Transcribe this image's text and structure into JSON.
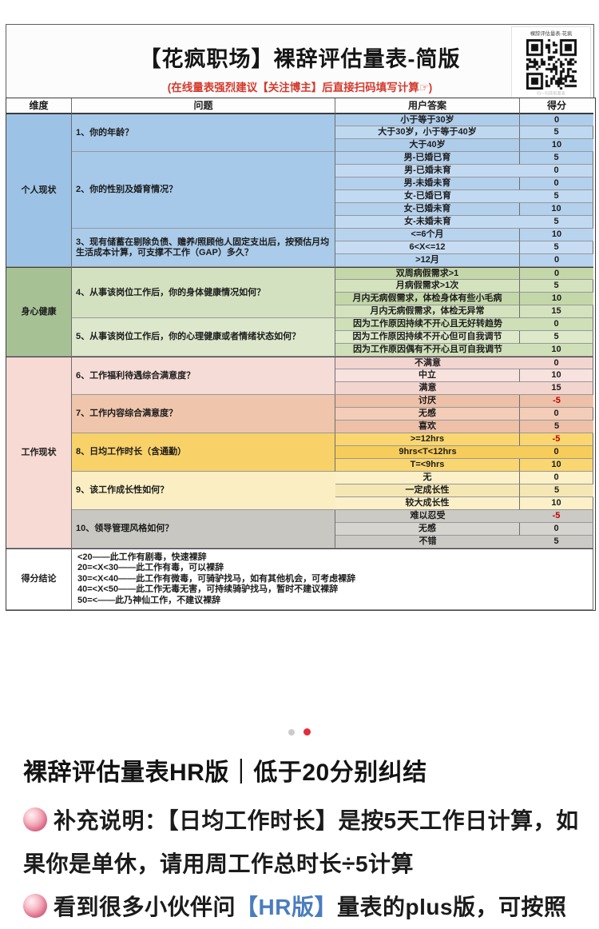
{
  "photo": {
    "title": "【花疯职场】裸辞评估量表-简版",
    "subtitle": "(在线量表强烈建议【关注博主】后直接扫码填写计算☞)",
    "qr": {
      "label": "裸辞评估量表-花疯",
      "caption": "扫一扫获取量表"
    },
    "table": {
      "headers": [
        "维度",
        "问题",
        "用户答案",
        "得分"
      ],
      "negative_color": "#c00000",
      "sections": [
        {
          "dimension": "个人现状",
          "dim_bg": "#9cc3e6",
          "questions": [
            {
              "text": "1、你的年龄？",
              "bg": "#a6c9ea",
              "rowA": "#aecdeb",
              "rowB": "#bed8f0",
              "answers": [
                {
                  "label": "小于等于30岁",
                  "score": "0"
                },
                {
                  "label": "大于30岁，小于等于40岁",
                  "score": "5"
                },
                {
                  "label": "大于40岁",
                  "score": "10"
                }
              ]
            },
            {
              "text": "2、你的性别及婚育情况？",
              "bg": "#a6c9ea",
              "rowA": "#b3d0ec",
              "rowB": "#c2daf1",
              "answers": [
                {
                  "label": "男-已婚已育",
                  "score": "5"
                },
                {
                  "label": "男-已婚未育",
                  "score": "0"
                },
                {
                  "label": "男-未婚未育",
                  "score": "0"
                },
                {
                  "label": "女-已婚已育",
                  "score": "5"
                },
                {
                  "label": "女-已婚未育",
                  "score": "10"
                },
                {
                  "label": "女-未婚未育",
                  "score": "5"
                }
              ]
            },
            {
              "text": "3、现有储蓄在剔除负债、赡养/照顾他人固定支出后，按预估月均生活成本计算，可支撑不工作（GAP）多久？",
              "bg": "#aacbe9",
              "rowA": "#b7d3ee",
              "rowB": "#c6dcf2",
              "answers": [
                {
                  "label": "<=6个月",
                  "score": "10"
                },
                {
                  "label": "6<X<=12",
                  "score": "5"
                },
                {
                  "label": ">12月",
                  "score": "0"
                }
              ]
            }
          ]
        },
        {
          "dimension": "身心健康",
          "dim_bg": "#a6c295",
          "questions": [
            {
              "text": "4、从事该岗位工作后，你的身体健康情况如何？",
              "bg": "#d3e1c0",
              "rowA": "#c4d7a9",
              "rowB": "#d4e3bd",
              "answers": [
                {
                  "label": "双周病假需求>1",
                  "score": "0"
                },
                {
                  "label": "月病假需求>1次",
                  "score": "5"
                },
                {
                  "label": "月内无病假需求，体检身体有些小毛病",
                  "score": "10"
                },
                {
                  "label": "月内无病假需求，体检无异常",
                  "score": "15"
                }
              ]
            },
            {
              "text": "5、从事该岗位工作后，你的心理健康或者情绪状态如何？",
              "bg": "#dce7cb",
              "rowA": "#cfe0b8",
              "rowB": "#dde9c9",
              "answers": [
                {
                  "label": "因为工作原因持续不开心且无好转趋势",
                  "score": "0"
                },
                {
                  "label": "因为工作原因持续不开心但可自我调节",
                  "score": "5"
                },
                {
                  "label": "因为工作原因偶有不开心且可自我调节",
                  "score": "10"
                }
              ]
            }
          ]
        },
        {
          "dimension": "工作现状",
          "dim_bg": "#f7dad3",
          "questions": [
            {
              "text": "6、工作福利待遇综合满意度？",
              "bg": "#f5dcd7",
              "rowA": "#f3d5d0",
              "rowB": "#f8e2dd",
              "answers": [
                {
                  "label": "不满意",
                  "score": "0"
                },
                {
                  "label": "中立",
                  "score": "10"
                },
                {
                  "label": "满意",
                  "score": "15"
                }
              ]
            },
            {
              "text": "7、工作内容综合满意度？",
              "bg": "#efc5ac",
              "rowA": "#edc0a7",
              "rowB": "#f3cdb7",
              "answers": [
                {
                  "label": "讨厌",
                  "score": "-5"
                },
                {
                  "label": "无感",
                  "score": "0"
                },
                {
                  "label": "喜欢",
                  "score": "5"
                }
              ]
            },
            {
              "text": "8、日均工作时长（含通勤）",
              "bg": "#f8d169",
              "rowA": "#f9d670",
              "rowB": "#f6cc5b",
              "answers": [
                {
                  "label": ">=12hrs",
                  "score": "-5"
                },
                {
                  "label": "9hrs<T<12hrs",
                  "score": "0"
                },
                {
                  "label": "T=<9hrs",
                  "score": "10"
                }
              ]
            },
            {
              "text": "9、该工作成长性如何？",
              "bg": "#faeec2",
              "rowA": "#fbf0c7",
              "rowB": "#f5e7b3",
              "answers": [
                {
                  "label": "无",
                  "score": "0"
                },
                {
                  "label": "一定成长性",
                  "score": "5"
                },
                {
                  "label": "较大成长性",
                  "score": "10"
                }
              ]
            },
            {
              "text": "10、领导管理风格如何？",
              "bg": "#c8c7c2",
              "rowA": "#cbcac5",
              "rowB": "#d5d4cf",
              "answers": [
                {
                  "label": "难以忍受",
                  "score": "-5"
                },
                {
                  "label": "无感",
                  "score": "0"
                },
                {
                  "label": "不错",
                  "score": "5"
                }
              ]
            }
          ]
        }
      ],
      "conclusion": {
        "dimension": "得分结论",
        "lines": [
          "<20——此工作有剧毒，快速裸辞",
          "20=<X<30——此工作有毒，可以裸辞",
          "30=<X<40——此工作有微毒，可骑驴找马，如有其他机会，可考虑裸辞",
          "40=<X<50——此工作无毒无害，可持续骑驴找马，暂时不建议裸辞",
          "50=<——此乃神仙工作，不建议裸辞"
        ]
      }
    }
  },
  "carousel": {
    "dots": [
      {
        "color": "#cccccc",
        "active": false
      },
      {
        "color": "#e52b3c",
        "active": true
      }
    ]
  },
  "post": {
    "heading": "裸辞评估量表HR版｜低于20分别纠结",
    "note1_a": "补充说明：【日均工作时长】是按5天工作日计算，如果你是单休，请用周工作总时长",
    "note1_divide": "÷",
    "note1_b": "5计算",
    "note2_a": "看到很多小伙伴问",
    "note2_link": "【HR版】",
    "note2_b": "量表的plus版，可按照"
  }
}
